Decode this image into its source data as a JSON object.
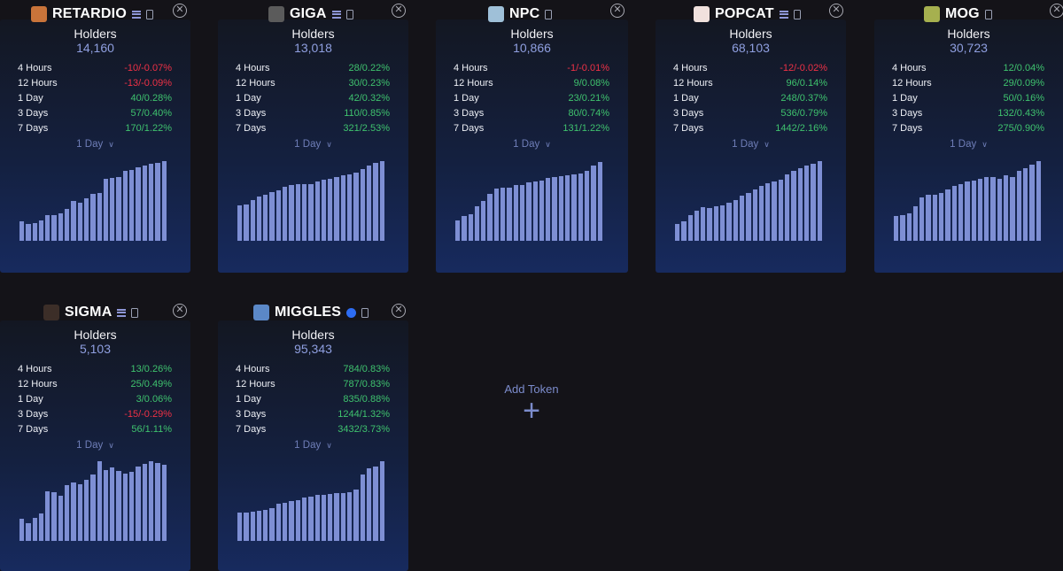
{
  "tokens": [
    {
      "symbol": "RETARDIO",
      "badge": "list",
      "logo_color": "#c9743a",
      "holders_label": "Holders",
      "holders": "14,160",
      "stats": [
        {
          "label": "4 Hours",
          "value": "-10/-0.07%",
          "trend": "neg"
        },
        {
          "label": "12 Hours",
          "value": "-13/-0.09%",
          "trend": "neg"
        },
        {
          "label": "1 Day",
          "value": "40/0.28%",
          "trend": "pos"
        },
        {
          "label": "3 Days",
          "value": "57/0.40%",
          "trend": "pos"
        },
        {
          "label": "7 Days",
          "value": "170/1.22%",
          "trend": "pos"
        }
      ],
      "period": "1 Day",
      "bars": [
        0.24,
        0.21,
        0.22,
        0.25,
        0.31,
        0.31,
        0.34,
        0.39,
        0.49,
        0.47,
        0.52,
        0.58,
        0.59,
        0.76,
        0.77,
        0.78,
        0.86,
        0.87,
        0.9,
        0.92,
        0.95,
        0.96,
        0.98
      ]
    },
    {
      "symbol": "GIGA",
      "badge": "list",
      "logo_color": "#5b5b5b",
      "holders_label": "Holders",
      "holders": "13,018",
      "stats": [
        {
          "label": "4 Hours",
          "value": "28/0.22%",
          "trend": "pos"
        },
        {
          "label": "12 Hours",
          "value": "30/0.23%",
          "trend": "pos"
        },
        {
          "label": "1 Day",
          "value": "42/0.32%",
          "trend": "pos"
        },
        {
          "label": "3 Days",
          "value": "110/0.85%",
          "trend": "pos"
        },
        {
          "label": "7 Days",
          "value": "321/2.53%",
          "trend": "pos"
        }
      ],
      "period": "1 Day",
      "bars": [
        0.44,
        0.45,
        0.5,
        0.54,
        0.57,
        0.6,
        0.62,
        0.66,
        0.68,
        0.7,
        0.7,
        0.7,
        0.73,
        0.75,
        0.76,
        0.78,
        0.8,
        0.82,
        0.84,
        0.88,
        0.92,
        0.96,
        0.98
      ]
    },
    {
      "symbol": "NPC",
      "badge": "none",
      "logo_color": "#9fc0d8",
      "holders_label": "Holders",
      "holders": "10,866",
      "stats": [
        {
          "label": "4 Hours",
          "value": "-1/-0.01%",
          "trend": "neg"
        },
        {
          "label": "12 Hours",
          "value": "9/0.08%",
          "trend": "pos"
        },
        {
          "label": "1 Day",
          "value": "23/0.21%",
          "trend": "pos"
        },
        {
          "label": "3 Days",
          "value": "80/0.74%",
          "trend": "pos"
        },
        {
          "label": "7 Days",
          "value": "131/1.22%",
          "trend": "pos"
        }
      ],
      "period": "1 Day",
      "bars": [
        0.25,
        0.3,
        0.33,
        0.42,
        0.49,
        0.58,
        0.64,
        0.65,
        0.65,
        0.68,
        0.69,
        0.72,
        0.73,
        0.74,
        0.77,
        0.78,
        0.79,
        0.8,
        0.81,
        0.83,
        0.86,
        0.92,
        0.97
      ]
    },
    {
      "symbol": "POPCAT",
      "badge": "list",
      "logo_color": "#f1e1dd",
      "holders_label": "Holders",
      "holders": "68,103",
      "stats": [
        {
          "label": "4 Hours",
          "value": "-12/-0.02%",
          "trend": "neg"
        },
        {
          "label": "12 Hours",
          "value": "96/0.14%",
          "trend": "pos"
        },
        {
          "label": "1 Day",
          "value": "248/0.37%",
          "trend": "pos"
        },
        {
          "label": "3 Days",
          "value": "536/0.79%",
          "trend": "pos"
        },
        {
          "label": "7 Days",
          "value": "1442/2.16%",
          "trend": "pos"
        }
      ],
      "period": "1 Day",
      "bars": [
        0.21,
        0.24,
        0.31,
        0.37,
        0.41,
        0.4,
        0.42,
        0.43,
        0.47,
        0.5,
        0.55,
        0.59,
        0.63,
        0.67,
        0.71,
        0.73,
        0.75,
        0.81,
        0.86,
        0.89,
        0.92,
        0.95,
        0.98
      ]
    },
    {
      "symbol": "MOG",
      "badge": "none",
      "logo_color": "#a6b04f",
      "holders_label": "Holders",
      "holders": "30,723",
      "stats": [
        {
          "label": "4 Hours",
          "value": "12/0.04%",
          "trend": "pos"
        },
        {
          "label": "12 Hours",
          "value": "29/0.09%",
          "trend": "pos"
        },
        {
          "label": "1 Day",
          "value": "50/0.16%",
          "trend": "pos"
        },
        {
          "label": "3 Days",
          "value": "132/0.43%",
          "trend": "pos"
        },
        {
          "label": "7 Days",
          "value": "275/0.90%",
          "trend": "pos"
        }
      ],
      "period": "1 Day",
      "bars": [
        0.3,
        0.31,
        0.34,
        0.42,
        0.53,
        0.56,
        0.57,
        0.59,
        0.63,
        0.67,
        0.7,
        0.73,
        0.74,
        0.76,
        0.78,
        0.78,
        0.76,
        0.8,
        0.78,
        0.86,
        0.89,
        0.94,
        0.98
      ]
    },
    {
      "symbol": "SIGMA",
      "badge": "list",
      "logo_color": "#3c2e28",
      "holders_label": "Holders",
      "holders": "5,103",
      "stats": [
        {
          "label": "4 Hours",
          "value": "13/0.26%",
          "trend": "pos"
        },
        {
          "label": "12 Hours",
          "value": "25/0.49%",
          "trend": "pos"
        },
        {
          "label": "1 Day",
          "value": "3/0.06%",
          "trend": "pos"
        },
        {
          "label": "3 Days",
          "value": "-15/-0.29%",
          "trend": "neg"
        },
        {
          "label": "7 Days",
          "value": "56/1.11%",
          "trend": "pos"
        }
      ],
      "period": "1 Day",
      "bars": [
        0.27,
        0.22,
        0.28,
        0.34,
        0.61,
        0.6,
        0.55,
        0.68,
        0.72,
        0.7,
        0.75,
        0.82,
        0.98,
        0.87,
        0.9,
        0.86,
        0.83,
        0.85,
        0.91,
        0.95,
        0.98,
        0.96,
        0.94
      ]
    },
    {
      "symbol": "MIGGLES",
      "badge": "dot",
      "logo_color": "#5b88c7",
      "holders_label": "Holders",
      "holders": "95,343",
      "stats": [
        {
          "label": "4 Hours",
          "value": "784/0.83%",
          "trend": "pos"
        },
        {
          "label": "12 Hours",
          "value": "787/0.83%",
          "trend": "pos"
        },
        {
          "label": "1 Day",
          "value": "835/0.88%",
          "trend": "pos"
        },
        {
          "label": "3 Days",
          "value": "1244/1.32%",
          "trend": "pos"
        },
        {
          "label": "7 Days",
          "value": "3432/3.73%",
          "trend": "pos"
        }
      ],
      "period": "1 Day",
      "bars": [
        0.35,
        0.35,
        0.36,
        0.37,
        0.38,
        0.4,
        0.46,
        0.47,
        0.49,
        0.5,
        0.53,
        0.54,
        0.56,
        0.57,
        0.58,
        0.59,
        0.59,
        0.6,
        0.63,
        0.82,
        0.89,
        0.91,
        0.98
      ]
    }
  ],
  "add_token": {
    "label": "Add Token",
    "icon": "plus-icon"
  },
  "colors": {
    "positive": "#3fc26e",
    "negative": "#ee3146",
    "bar": "#7e8fd4",
    "accent": "#8f9fe0"
  }
}
